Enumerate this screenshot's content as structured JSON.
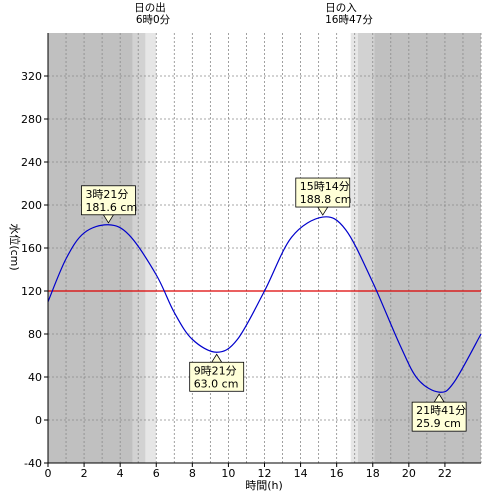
{
  "chart_data": {
    "type": "line",
    "xlabel": "時間(h)",
    "ylabel": "水位(cm)",
    "xlim": [
      0,
      24
    ],
    "ylim": [
      -40,
      360
    ],
    "x_ticks": [
      "0",
      "2",
      "4",
      "6",
      "8",
      "10",
      "12",
      "14",
      "16",
      "18",
      "20",
      "22"
    ],
    "y_ticks": [
      "-40",
      "0",
      "40",
      "80",
      "120",
      "160",
      "200",
      "240",
      "280",
      "320"
    ],
    "reference_line": {
      "y": 120,
      "color": "#dd0000"
    },
    "line_color": "#0000cc",
    "series": [
      {
        "points": [
          [
            0,
            110
          ],
          [
            1,
            150
          ],
          [
            2,
            174
          ],
          [
            3.35,
            181.6
          ],
          [
            4.5,
            172
          ],
          [
            6,
            135
          ],
          [
            7,
            100
          ],
          [
            8,
            75
          ],
          [
            9.35,
            63.0
          ],
          [
            10.5,
            75
          ],
          [
            12,
            120
          ],
          [
            13.5,
            170
          ],
          [
            15.23,
            188.8
          ],
          [
            16.5,
            177
          ],
          [
            18,
            128
          ],
          [
            19.5,
            70
          ],
          [
            20.5,
            38
          ],
          [
            21.68,
            25.9
          ],
          [
            22.5,
            35
          ],
          [
            24,
            80
          ]
        ]
      }
    ],
    "annotations": [
      {
        "time": "3時21分",
        "level": "181.6 cm",
        "x": 3.35,
        "y": 181.6
      },
      {
        "time": "9時21分",
        "level": "63.0 cm",
        "x": 9.35,
        "y": 63.0
      },
      {
        "time": "15時14分",
        "level": "188.8 cm",
        "x": 15.23,
        "y": 188.8
      },
      {
        "time": "21時41分",
        "level": "25.9 cm",
        "x": 21.68,
        "y": 25.9
      }
    ],
    "sunrise": {
      "label": "日の出",
      "time": "6時0分",
      "hour": 6.0
    },
    "sunset": {
      "label": "日の入",
      "time": "16時47分",
      "hour": 16.78
    },
    "shading": {
      "night": "#c0c0c0",
      "twilight_dark": "#d2d2d2",
      "twilight_light": "#e6e6e6",
      "day": "#ffffff"
    }
  }
}
